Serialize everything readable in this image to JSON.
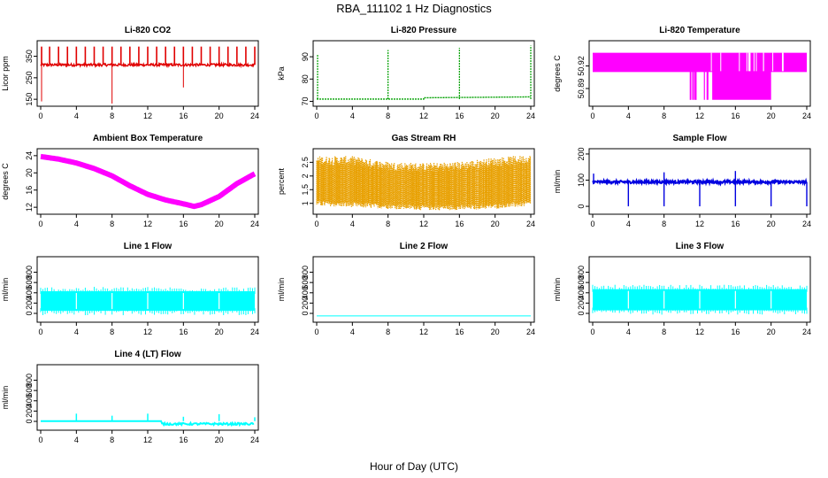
{
  "figure": {
    "title": "RBA_111102  1 Hz Diagnostics",
    "xlabel": "Hour of Day (UTC)"
  },
  "chart_data": [
    {
      "id": "co2",
      "type": "line",
      "title": "Li-820 CO2",
      "ylabel": "Licor ppm",
      "color": "#e00000",
      "xlim": [
        0,
        24
      ],
      "ylim": [
        130,
        410
      ],
      "x_ticks": [
        0,
        4,
        8,
        12,
        16,
        20,
        24
      ],
      "y_ticks": [
        150,
        250,
        350
      ],
      "baseline": 310,
      "noise": 6,
      "spikes_up": [
        0.1,
        1.0,
        2.0,
        3.0,
        4.0,
        5.0,
        6.0,
        7.0,
        8.0,
        9.0,
        10.0,
        11.0,
        12.0,
        13.0,
        14.0,
        15.0,
        16.0,
        17.0,
        18.0,
        19.0,
        20.0,
        21.0,
        22.0,
        23.0,
        24.0
      ],
      "spikes_up_value": 395,
      "spikes_down": [
        {
          "x": 0.1,
          "y": 140
        },
        {
          "x": 8.0,
          "y": 130
        },
        {
          "x": 16.0,
          "y": 205
        }
      ]
    },
    {
      "id": "pressure",
      "type": "line",
      "title": "Li-820 Pressure",
      "ylabel": "kPa",
      "color": "#00a000",
      "xlim": [
        0,
        24
      ],
      "ylim": [
        69,
        96
      ],
      "x_ticks": [
        0,
        4,
        8,
        12,
        16,
        20,
        24
      ],
      "y_ticks": [
        70,
        80,
        90
      ],
      "segments": [
        {
          "x": [
            0,
            12,
            12,
            24
          ],
          "y": [
            71,
            71,
            71.6,
            72
          ]
        }
      ],
      "spikes": [
        {
          "x": 0.1,
          "y": 91
        },
        {
          "x": 8.0,
          "y": 93
        },
        {
          "x": 16.0,
          "y": 94
        },
        {
          "x": 24.0,
          "y": 95
        }
      ]
    },
    {
      "id": "licor_temp",
      "type": "line",
      "title": "Li-820 Temperature",
      "ylabel": "degrees C",
      "color": "#ff00ff",
      "xlim": [
        0,
        24
      ],
      "ylim": [
        50.87,
        50.95
      ],
      "x_ticks": [
        0,
        4,
        8,
        12,
        16,
        20,
        24
      ],
      "y_ticks": [
        50.89,
        50.92
      ],
      "y_tick_labels": [
        "50.89",
        "50.92"
      ],
      "levels": [
        50.9125,
        50.9375
      ],
      "low_level": 50.875,
      "low_period": [
        10.8,
        20.0
      ]
    },
    {
      "id": "ambient",
      "type": "line",
      "title": "Ambient Box Temperature",
      "ylabel": "degrees C",
      "color": "#ff00ff",
      "xlim": [
        0,
        24
      ],
      "ylim": [
        11,
        25
      ],
      "x_ticks": [
        0,
        4,
        8,
        12,
        16,
        20,
        24
      ],
      "y_ticks": [
        12,
        16,
        20,
        24
      ],
      "x": [
        0,
        2,
        4,
        6,
        8,
        10,
        12,
        14,
        16,
        17.2,
        18,
        20,
        22,
        24
      ],
      "y": [
        23.8,
        23.2,
        22.3,
        21.0,
        19.3,
        17.0,
        15.0,
        13.7,
        12.8,
        12.2,
        12.6,
        14.5,
        17.5,
        19.8
      ]
    },
    {
      "id": "rh",
      "type": "line",
      "title": "Gas Stream RH",
      "ylabel": "percent",
      "color": "#e8a000",
      "xlim": [
        0,
        24
      ],
      "ylim": [
        0.7,
        2.9
      ],
      "x_ticks": [
        0,
        4,
        8,
        12,
        16,
        20,
        24
      ],
      "y_ticks": [
        1.0,
        1.5,
        2.0,
        2.5
      ],
      "upper_x": [
        0,
        4,
        8,
        12,
        16,
        20,
        24
      ],
      "upper_y": [
        2.55,
        2.55,
        2.35,
        2.3,
        2.35,
        2.5,
        2.6
      ],
      "lower_x": [
        0,
        4,
        8,
        12,
        16,
        20,
        24
      ],
      "lower_y": [
        1.0,
        0.95,
        0.9,
        0.85,
        0.85,
        0.9,
        1.0
      ]
    },
    {
      "id": "sample_flow",
      "type": "line",
      "title": "Sample Flow",
      "ylabel": "ml/min",
      "color": "#0000e0",
      "xlim": [
        0,
        24
      ],
      "ylim": [
        -20,
        210
      ],
      "x_ticks": [
        0,
        4,
        8,
        12,
        16,
        20,
        24
      ],
      "y_ticks": [
        0,
        100,
        200
      ],
      "baseline": 93,
      "noise": 5,
      "dips": [
        4.0,
        8.0,
        12.0,
        16.0,
        20.0,
        24.0
      ],
      "dip_value": 0,
      "peaks": [
        {
          "x": 0.1,
          "y": 125
        },
        {
          "x": 8.0,
          "y": 130
        },
        {
          "x": 16.0,
          "y": 135
        }
      ]
    },
    {
      "id": "line1",
      "type": "line",
      "title": "Line 1 Flow",
      "ylabel": "ml/min",
      "color": "#00ffff",
      "xlim": [
        0,
        24
      ],
      "ylim": [
        -120,
        1050
      ],
      "x_ticks": [
        0,
        4,
        8,
        12,
        16,
        20,
        24
      ],
      "y_ticks": [
        0,
        200,
        400,
        600,
        800
      ],
      "band_top": 430,
      "band_bottom": 50,
      "gaps": [
        4.0,
        8.0,
        12.0,
        16.0,
        20.0
      ]
    },
    {
      "id": "line2",
      "type": "line",
      "title": "Line 2 Flow",
      "ylabel": "ml/min",
      "color": "#00ffff",
      "xlim": [
        0,
        24
      ],
      "ylim": [
        -120,
        1050
      ],
      "x_ticks": [
        0,
        4,
        8,
        12,
        16,
        20,
        24
      ],
      "y_ticks": [
        0,
        200,
        400,
        600,
        800
      ],
      "x": [
        0,
        24
      ],
      "y": [
        -50,
        -50
      ]
    },
    {
      "id": "line3",
      "type": "line",
      "title": "Line 3 Flow",
      "ylabel": "ml/min",
      "color": "#00ffff",
      "xlim": [
        0,
        24
      ],
      "ylim": [
        -120,
        1050
      ],
      "x_ticks": [
        0,
        4,
        8,
        12,
        16,
        20,
        24
      ],
      "y_ticks": [
        0,
        200,
        400,
        600,
        800
      ],
      "band_top": 470,
      "band_bottom": 60,
      "gaps": [
        4.0,
        8.0,
        12.0,
        16.0,
        20.0
      ]
    },
    {
      "id": "line4",
      "type": "line",
      "title": "Line 4 (LT) Flow",
      "ylabel": "ml/min",
      "color": "#00ffff",
      "xlim": [
        0,
        24
      ],
      "ylim": [
        -120,
        1050
      ],
      "x_ticks": [
        0,
        4,
        8,
        12,
        16,
        20,
        24
      ],
      "y_ticks": [
        0,
        200,
        400,
        600,
        800
      ],
      "baseline": 5,
      "peaks": [
        {
          "x": 4.0,
          "y": 150
        },
        {
          "x": 8.0,
          "y": 110
        },
        {
          "x": 12.0,
          "y": 150
        },
        {
          "x": 16.0,
          "y": 90
        },
        {
          "x": 20.0,
          "y": 140
        },
        {
          "x": 24.0,
          "y": 80
        }
      ],
      "low_period": [
        13.5,
        24.0
      ],
      "low_value": -50
    }
  ]
}
